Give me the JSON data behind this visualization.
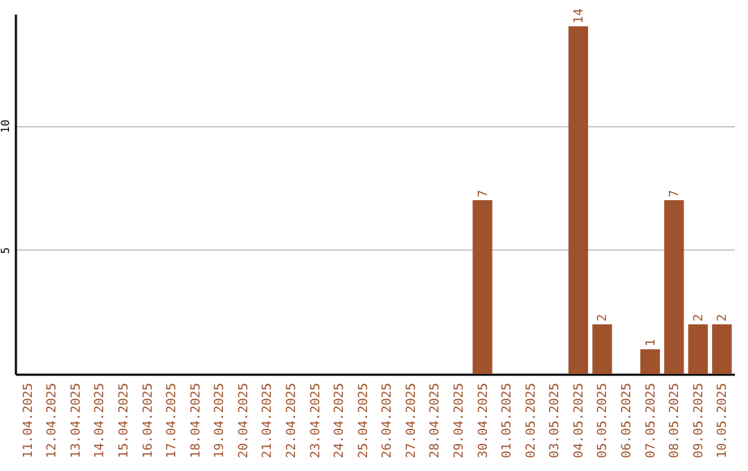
{
  "chart_data": {
    "type": "bar",
    "categories": [
      "11.04.2025",
      "12.04.2025",
      "13.04.2025",
      "14.04.2025",
      "15.04.2025",
      "16.04.2025",
      "17.04.2025",
      "18.04.2025",
      "19.04.2025",
      "20.04.2025",
      "21.04.2025",
      "22.04.2025",
      "23.04.2025",
      "24.04.2025",
      "25.04.2025",
      "26.04.2025",
      "27.04.2025",
      "28.04.2025",
      "29.04.2025",
      "30.04.2025",
      "01.05.2025",
      "02.05.2025",
      "03.05.2025",
      "04.05.2025",
      "05.05.2025",
      "06.05.2025",
      "07.05.2025",
      "08.05.2025",
      "09.05.2025",
      "10.05.2025"
    ],
    "values": [
      0,
      0,
      0,
      0,
      0,
      0,
      0,
      0,
      0,
      0,
      0,
      0,
      0,
      0,
      0,
      0,
      0,
      0,
      0,
      7,
      0,
      0,
      0,
      14,
      2,
      0,
      1,
      7,
      2,
      2
    ],
    "value_labels": [
      null,
      null,
      null,
      null,
      null,
      null,
      null,
      null,
      null,
      null,
      null,
      null,
      null,
      null,
      null,
      null,
      null,
      null,
      null,
      "7",
      null,
      null,
      null,
      "14",
      "2",
      null,
      "1",
      "7",
      "2",
      "2"
    ],
    "color": "#a0522d",
    "ylim": [
      0,
      14.5
    ],
    "yticks": [
      5,
      10
    ],
    "grid": "y"
  }
}
